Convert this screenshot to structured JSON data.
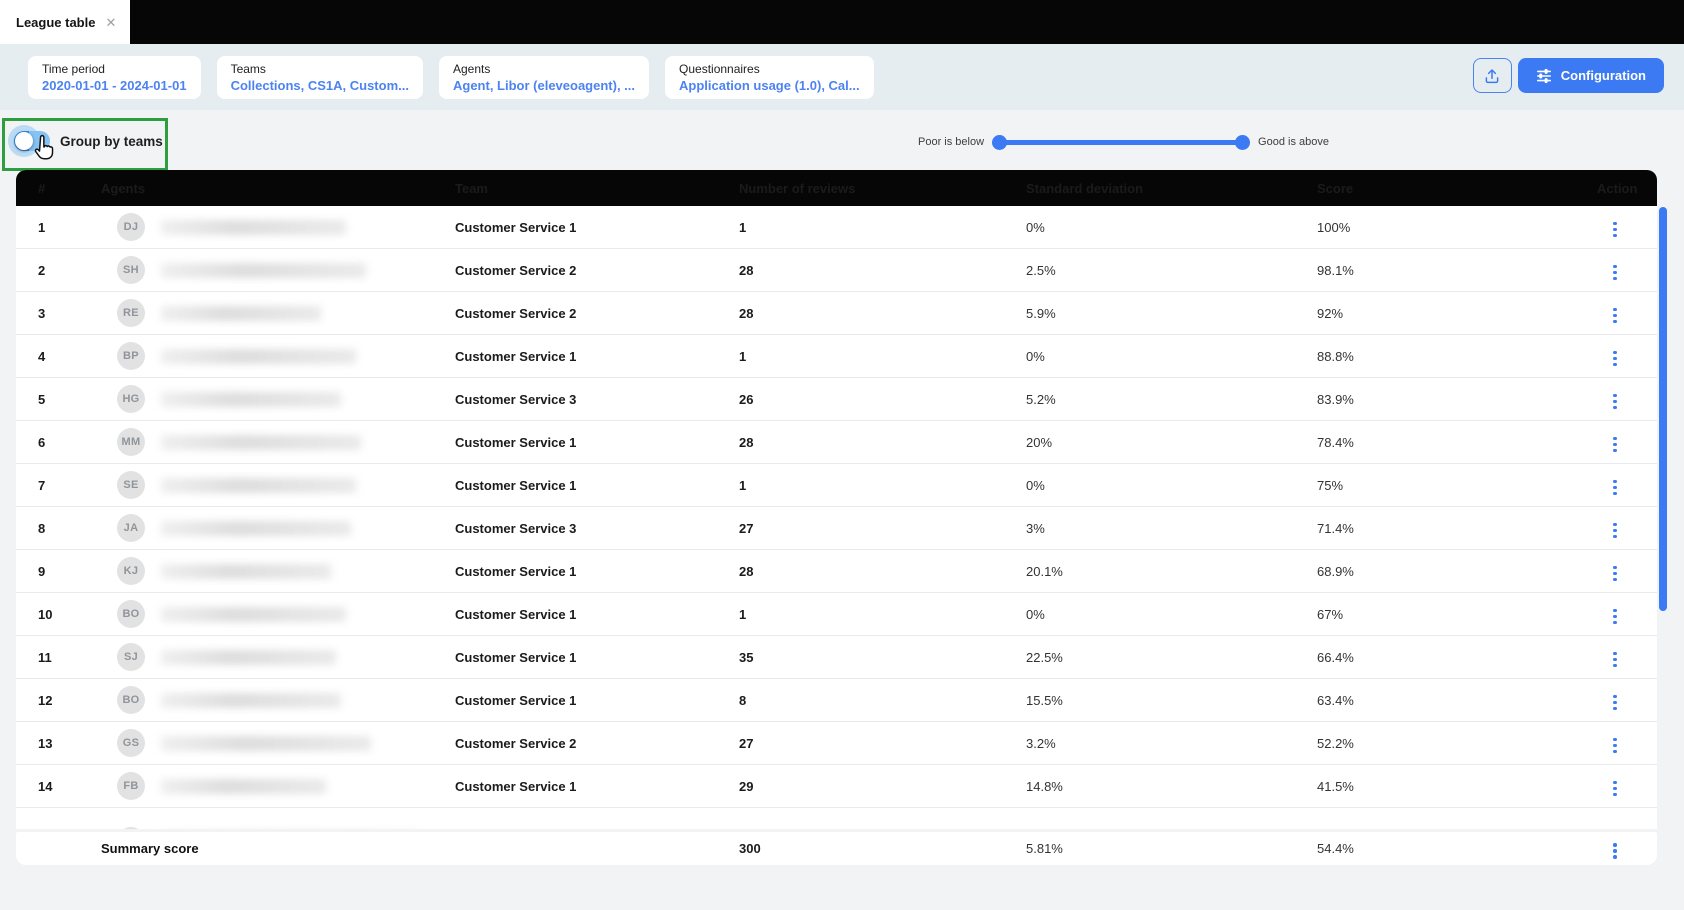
{
  "tab": {
    "title": "League table"
  },
  "filter_bar": {
    "chips": [
      {
        "label": "Time period",
        "value": "2020-01-01 - 2024-01-01"
      },
      {
        "label": "Teams",
        "value": "Collections, CS1A, Custom..."
      },
      {
        "label": "Agents",
        "value": "Agent, Libor (eleveoagent), ..."
      },
      {
        "label": "Questionnaires",
        "value": "Application usage (1.0), Cal..."
      }
    ],
    "configuration_button": "Configuration",
    "export_icon": "upload-icon",
    "configuration_icon": "tune-sliders-icon"
  },
  "controls": {
    "group_by_teams": {
      "label": "Group by teams",
      "state": "off"
    },
    "threshold_slider": {
      "left_label": "Poor is below",
      "right_label": "Good is above"
    }
  },
  "table": {
    "columns": [
      "#",
      "Agents",
      "Team",
      "Number of reviews",
      "Standard deviation",
      "Score",
      "Action"
    ],
    "rows": [
      {
        "rank": "1",
        "initials": "DJ",
        "team": "Customer Service 1",
        "reviews": "1",
        "std_dev": "0%",
        "score": "100%"
      },
      {
        "rank": "2",
        "initials": "SH",
        "team": "Customer Service 2",
        "reviews": "28",
        "std_dev": "2.5%",
        "score": "98.1%"
      },
      {
        "rank": "3",
        "initials": "RE",
        "team": "Customer Service 2",
        "reviews": "28",
        "std_dev": "5.9%",
        "score": "92%"
      },
      {
        "rank": "4",
        "initials": "BP",
        "team": "Customer Service 1",
        "reviews": "1",
        "std_dev": "0%",
        "score": "88.8%"
      },
      {
        "rank": "5",
        "initials": "HG",
        "team": "Customer Service 3",
        "reviews": "26",
        "std_dev": "5.2%",
        "score": "83.9%"
      },
      {
        "rank": "6",
        "initials": "MM",
        "team": "Customer Service 1",
        "reviews": "28",
        "std_dev": "20%",
        "score": "78.4%"
      },
      {
        "rank": "7",
        "initials": "SE",
        "team": "Customer Service 1",
        "reviews": "1",
        "std_dev": "0%",
        "score": "75%"
      },
      {
        "rank": "8",
        "initials": "JA",
        "team": "Customer Service 3",
        "reviews": "27",
        "std_dev": "3%",
        "score": "71.4%"
      },
      {
        "rank": "9",
        "initials": "KJ",
        "team": "Customer Service 1",
        "reviews": "28",
        "std_dev": "20.1%",
        "score": "68.9%"
      },
      {
        "rank": "10",
        "initials": "BO",
        "team": "Customer Service 1",
        "reviews": "1",
        "std_dev": "0%",
        "score": "67%"
      },
      {
        "rank": "11",
        "initials": "SJ",
        "team": "Customer Service 1",
        "reviews": "35",
        "std_dev": "22.5%",
        "score": "66.4%"
      },
      {
        "rank": "12",
        "initials": "BO",
        "team": "Customer Service 1",
        "reviews": "8",
        "std_dev": "15.5%",
        "score": "63.4%"
      },
      {
        "rank": "13",
        "initials": "GS",
        "team": "Customer Service 2",
        "reviews": "27",
        "std_dev": "3.2%",
        "score": "52.2%"
      },
      {
        "rank": "14",
        "initials": "FB",
        "team": "Customer Service 1",
        "reviews": "29",
        "std_dev": "14.8%",
        "score": "41.5%"
      }
    ],
    "partial_row_visible": true,
    "summary": {
      "label": "Summary score",
      "reviews": "300",
      "std_dev": "5.81%",
      "score": "54.4%"
    }
  },
  "colors": {
    "accent_blue": "#3b7af2",
    "link_blue": "#4c83f1",
    "header_black": "#060606",
    "annotation_green": "#2f9e41",
    "filterbar_bg": "#e6edf0",
    "content_bg": "#f1f3f4"
  }
}
